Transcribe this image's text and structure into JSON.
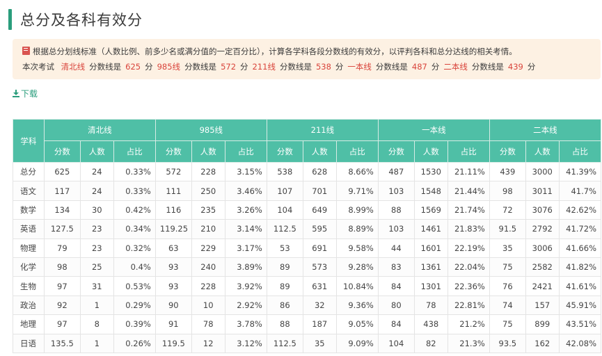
{
  "page": {
    "title": "总分及各科有效分",
    "download_label": "下载"
  },
  "notice": {
    "line1": "根据总分划线标准（人数比例、前多少名或满分值的一定百分比），计算各学科各段分数线的有效分，以评判各科和总分达线的相关考情。",
    "prefix": "本次考试",
    "lines": [
      {
        "name": "清北线",
        "label": "分数线是",
        "score": "625",
        "unit": "分"
      },
      {
        "name": "985线",
        "label": "分数线是",
        "score": "572",
        "unit": "分"
      },
      {
        "name": "211线",
        "label": "分数线是",
        "score": "538",
        "unit": "分"
      },
      {
        "name": "一本线",
        "label": "分数线是",
        "score": "487",
        "unit": "分"
      },
      {
        "name": "二本线",
        "label": "分数线是",
        "score": "439",
        "unit": "分"
      }
    ]
  },
  "table": {
    "subject_header": "学科",
    "groups": [
      "清北线",
      "985线",
      "211线",
      "一本线",
      "二本线"
    ],
    "sub_headers": [
      "分数",
      "人数",
      "占比"
    ],
    "rows": [
      {
        "subject": "总分",
        "cells": [
          [
            "625",
            "24",
            "0.33%"
          ],
          [
            "572",
            "228",
            "3.15%"
          ],
          [
            "538",
            "628",
            "8.66%"
          ],
          [
            "487",
            "1530",
            "21.11%"
          ],
          [
            "439",
            "3000",
            "41.39%"
          ]
        ]
      },
      {
        "subject": "语文",
        "cells": [
          [
            "117",
            "24",
            "0.33%"
          ],
          [
            "111",
            "250",
            "3.46%"
          ],
          [
            "107",
            "701",
            "9.71%"
          ],
          [
            "103",
            "1548",
            "21.44%"
          ],
          [
            "98",
            "3011",
            "41.7%"
          ]
        ]
      },
      {
        "subject": "数学",
        "cells": [
          [
            "134",
            "30",
            "0.42%"
          ],
          [
            "116",
            "235",
            "3.26%"
          ],
          [
            "104",
            "649",
            "8.99%"
          ],
          [
            "88",
            "1569",
            "21.74%"
          ],
          [
            "72",
            "3076",
            "42.62%"
          ]
        ]
      },
      {
        "subject": "英语",
        "cells": [
          [
            "127.5",
            "23",
            "0.34%"
          ],
          [
            "119.25",
            "210",
            "3.14%"
          ],
          [
            "112.5",
            "595",
            "8.89%"
          ],
          [
            "103",
            "1461",
            "21.83%"
          ],
          [
            "91.5",
            "2792",
            "41.72%"
          ]
        ]
      },
      {
        "subject": "物理",
        "cells": [
          [
            "79",
            "23",
            "0.32%"
          ],
          [
            "63",
            "229",
            "3.17%"
          ],
          [
            "53",
            "691",
            "9.58%"
          ],
          [
            "44",
            "1601",
            "22.19%"
          ],
          [
            "35",
            "3006",
            "41.66%"
          ]
        ]
      },
      {
        "subject": "化学",
        "cells": [
          [
            "98",
            "25",
            "0.4%"
          ],
          [
            "93",
            "240",
            "3.89%"
          ],
          [
            "89",
            "573",
            "9.28%"
          ],
          [
            "83",
            "1361",
            "22.04%"
          ],
          [
            "75",
            "2582",
            "41.82%"
          ]
        ]
      },
      {
        "subject": "生物",
        "cells": [
          [
            "97",
            "31",
            "0.53%"
          ],
          [
            "93",
            "228",
            "3.92%"
          ],
          [
            "89",
            "631",
            "10.84%"
          ],
          [
            "84",
            "1301",
            "22.36%"
          ],
          [
            "76",
            "2421",
            "41.61%"
          ]
        ]
      },
      {
        "subject": "政治",
        "cells": [
          [
            "92",
            "1",
            "0.29%"
          ],
          [
            "90",
            "10",
            "2.92%"
          ],
          [
            "86",
            "32",
            "9.36%"
          ],
          [
            "80",
            "78",
            "22.81%"
          ],
          [
            "74",
            "157",
            "45.91%"
          ]
        ]
      },
      {
        "subject": "地理",
        "cells": [
          [
            "97",
            "8",
            "0.39%"
          ],
          [
            "91",
            "78",
            "3.78%"
          ],
          [
            "88",
            "187",
            "9.05%"
          ],
          [
            "84",
            "438",
            "21.2%"
          ],
          [
            "75",
            "899",
            "43.51%"
          ]
        ]
      },
      {
        "subject": "日语",
        "cells": [
          [
            "135.5",
            "1",
            "0.26%"
          ],
          [
            "119.5",
            "12",
            "3.12%"
          ],
          [
            "112.5",
            "35",
            "9.09%"
          ],
          [
            "104",
            "82",
            "21.3%"
          ],
          [
            "93.5",
            "162",
            "42.08%"
          ]
        ]
      }
    ]
  },
  "colors": {
    "accent": "#2a9d7c",
    "header_bg": "#4fbfa6",
    "notice_bg": "#fdf1e3",
    "highlight": "#d9443b"
  }
}
